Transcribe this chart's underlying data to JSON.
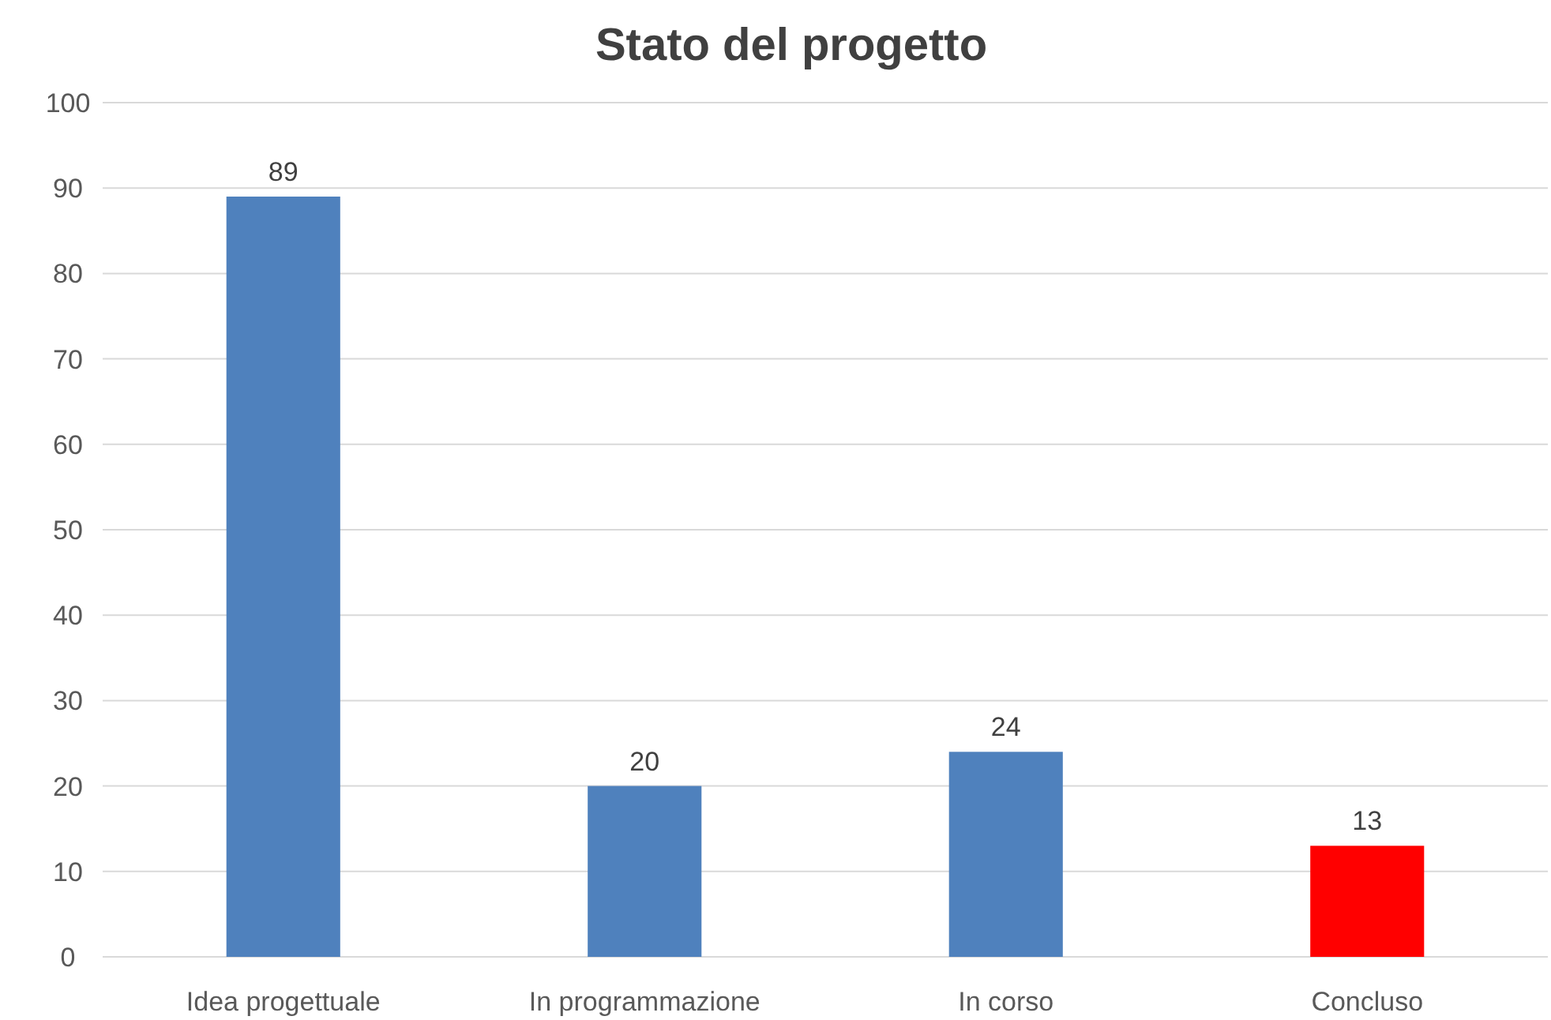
{
  "chart_data": {
    "type": "bar",
    "title": "Stato del progetto",
    "categories": [
      "Idea progettuale",
      "In programmazione",
      "In corso",
      "Concluso"
    ],
    "values": [
      89,
      20,
      24,
      13
    ],
    "colors": [
      "#4f81bd",
      "#4f81bd",
      "#4f81bd",
      "#ff0000"
    ],
    "ylim": [
      0,
      100
    ],
    "yticks": [
      0,
      10,
      20,
      30,
      40,
      50,
      60,
      70,
      80,
      90,
      100
    ],
    "grid": "y",
    "data_labels": true
  }
}
